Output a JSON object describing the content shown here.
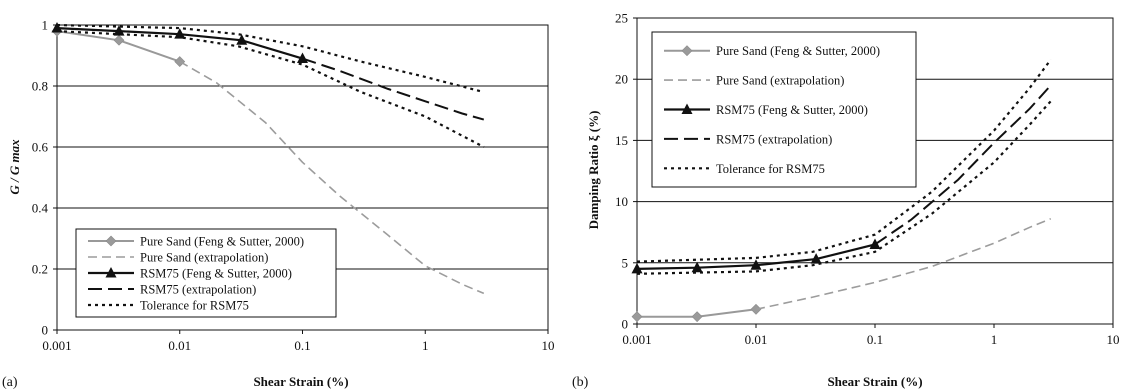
{
  "chart_data": [
    {
      "type": "line",
      "panel_label": "(a)",
      "xlabel": "Shear Strain (%)",
      "ylabel": "G / G max",
      "x_scale": "log",
      "xlim": [
        0.001,
        10
      ],
      "ylim": [
        0,
        1
      ],
      "x_ticks": [
        0.001,
        0.01,
        0.1,
        1,
        10
      ],
      "x_tick_labels": [
        "0.001",
        "0.01",
        "0.1",
        "1",
        "10"
      ],
      "y_ticks": [
        0,
        0.2,
        0.4,
        0.6,
        0.8,
        1
      ],
      "y_tick_labels": [
        "0",
        "0.2",
        "0.4",
        "0.6",
        "0.8",
        "1"
      ],
      "grid": "horizontal",
      "legend_position": "bottom-left",
      "series": [
        {
          "name": "Pure Sand (Feng & Sutter, 2000)",
          "style": "gray-diamond",
          "x": [
            0.001,
            0.0032,
            0.01
          ],
          "y": [
            0.98,
            0.95,
            0.88
          ]
        },
        {
          "name": "Pure Sand (extrapolation)",
          "style": "gray-dashed",
          "x": [
            0.01,
            0.02,
            0.05,
            0.1,
            0.2,
            0.5,
            1,
            2,
            3
          ],
          "y": [
            0.88,
            0.81,
            0.68,
            0.55,
            0.44,
            0.31,
            0.21,
            0.15,
            0.12
          ]
        },
        {
          "name": "RSM75 (Feng & Sutter, 2000)",
          "style": "black-triangle",
          "x": [
            0.001,
            0.0032,
            0.01,
            0.032,
            0.1
          ],
          "y": [
            0.99,
            0.98,
            0.97,
            0.95,
            0.89
          ]
        },
        {
          "name": "RSM75 (extrapolation)",
          "style": "black-longdash",
          "x": [
            0.1,
            0.2,
            0.5,
            1,
            2,
            3
          ],
          "y": [
            0.89,
            0.85,
            0.79,
            0.75,
            0.71,
            0.69
          ]
        },
        {
          "name": "Tolerance for RSM75",
          "style": "black-dotted",
          "x": [
            0.001,
            0.01,
            0.03,
            0.1,
            0.3,
            1,
            3
          ],
          "y": [
            1.0,
            0.99,
            0.97,
            0.93,
            0.88,
            0.83,
            0.78
          ]
        },
        {
          "name": "",
          "style": "black-dotted",
          "x": [
            0.001,
            0.01,
            0.03,
            0.1,
            0.3,
            1,
            3
          ],
          "y": [
            0.98,
            0.96,
            0.93,
            0.87,
            0.78,
            0.7,
            0.6
          ]
        }
      ]
    },
    {
      "type": "line",
      "panel_label": "(b)",
      "xlabel": "Shear Strain (%)",
      "ylabel": "Damping Ratio ξ (%)",
      "x_scale": "log",
      "xlim": [
        0.001,
        10
      ],
      "ylim": [
        0,
        25
      ],
      "x_ticks": [
        0.001,
        0.01,
        0.1,
        1,
        10
      ],
      "x_tick_labels": [
        "0.001",
        "0.01",
        "0.1",
        "1",
        "10"
      ],
      "y_ticks": [
        0,
        5,
        10,
        15,
        20,
        25
      ],
      "y_tick_labels": [
        "0",
        "5",
        "10",
        "15",
        "20",
        "25"
      ],
      "grid": "horizontal",
      "legend_position": "top-left",
      "series": [
        {
          "name": "Pure Sand (Feng & Sutter, 2000)",
          "style": "gray-diamond",
          "x": [
            0.001,
            0.0032,
            0.01
          ],
          "y": [
            0.6,
            0.6,
            1.2
          ]
        },
        {
          "name": "Pure Sand (extrapolation)",
          "style": "gray-dashed",
          "x": [
            0.01,
            0.03,
            0.1,
            0.3,
            1,
            2,
            3
          ],
          "y": [
            1.2,
            2.2,
            3.4,
            4.7,
            6.6,
            7.9,
            8.6
          ]
        },
        {
          "name": "RSM75 (Feng & Sutter, 2000)",
          "style": "black-triangle",
          "x": [
            0.001,
            0.0032,
            0.01,
            0.032,
            0.1
          ],
          "y": [
            4.5,
            4.6,
            4.8,
            5.3,
            6.5
          ]
        },
        {
          "name": "RSM75 (extrapolation)",
          "style": "black-longdash",
          "x": [
            0.1,
            0.2,
            0.5,
            1,
            2,
            3
          ],
          "y": [
            6.5,
            8.5,
            11.8,
            14.8,
            17.6,
            19.5
          ]
        },
        {
          "name": "Tolerance for RSM75",
          "style": "black-dotted",
          "x": [
            0.001,
            0.01,
            0.03,
            0.1,
            0.3,
            1,
            2,
            3
          ],
          "y": [
            5.1,
            5.4,
            5.9,
            7.3,
            10.8,
            15.8,
            19.3,
            21.6
          ]
        },
        {
          "name": "",
          "style": "black-dotted",
          "x": [
            0.001,
            0.01,
            0.03,
            0.1,
            0.3,
            1,
            2,
            3
          ],
          "y": [
            4.1,
            4.3,
            4.8,
            5.9,
            9.0,
            13.2,
            16.3,
            18.2
          ]
        }
      ]
    }
  ]
}
